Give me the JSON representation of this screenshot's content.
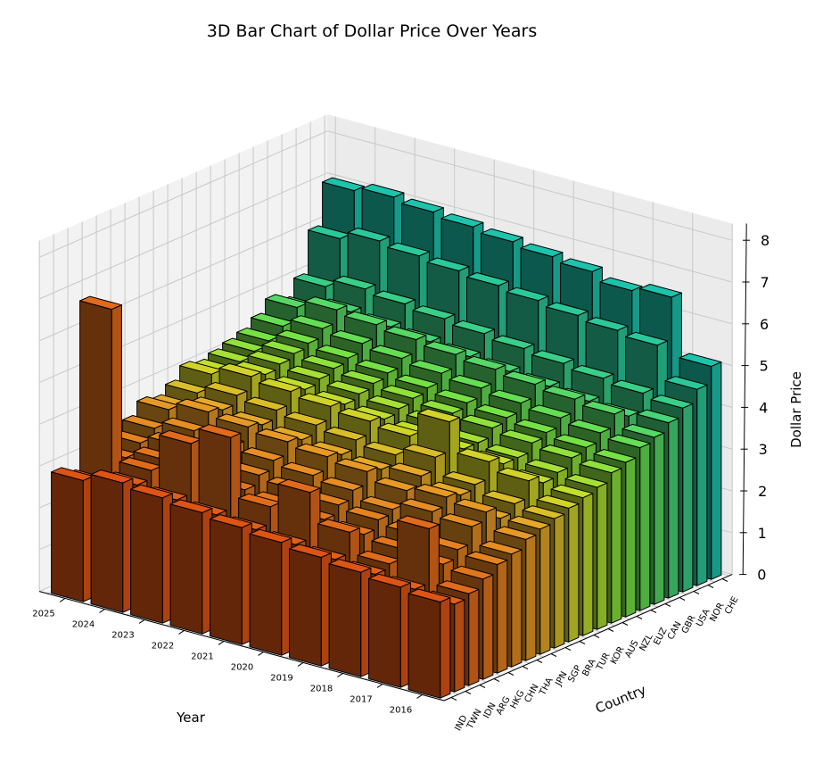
{
  "chart_data": {
    "type": "bar3d",
    "title": "3D Bar Chart of Dollar Price Over Years",
    "xlabel": "Year",
    "ylabel": "Country",
    "zlabel": "Dollar Price",
    "zlim": [
      0,
      8
    ],
    "z_ticks": [
      "0",
      "1",
      "2",
      "3",
      "4",
      "5",
      "6",
      "7",
      "8"
    ],
    "years": [
      "2016",
      "2017",
      "2018",
      "2019",
      "2020",
      "2021",
      "2022",
      "2023",
      "2024",
      "2025"
    ],
    "countries": [
      "IND",
      "TWN",
      "IDN",
      "ARG",
      "HKG",
      "CHN",
      "THA",
      "JPN",
      "SGP",
      "BRA",
      "TUR",
      "KOR",
      "AUS",
      "NZL",
      "EUZ",
      "CAN",
      "GBR",
      "USA",
      "NOR",
      "CHE"
    ],
    "grid": true,
    "colormap": "orange-to-teal by country",
    "values": [
      [
        2.3,
        2.1,
        2.2,
        2.4,
        2.6,
        2.7,
        2.9,
        3.0,
        3.1,
        3.2,
        3.3,
        3.4,
        3.6,
        3.7,
        3.9,
        4.0,
        4.2,
        4.4,
        4.7,
        5.1
      ],
      [
        2.4,
        2.2,
        3.5,
        2.5,
        2.7,
        3.1,
        3.3,
        3.0,
        3.2,
        3.6,
        3.4,
        3.5,
        3.7,
        3.8,
        4.0,
        4.3,
        4.1,
        4.5,
        5.5,
        6.5
      ],
      [
        2.5,
        2.3,
        2.4,
        2.6,
        2.8,
        3.2,
        3.4,
        3.3,
        3.4,
        3.8,
        3.6,
        3.6,
        3.8,
        3.9,
        4.1,
        4.4,
        4.2,
        4.6,
        5.6,
        6.4
      ],
      [
        2.6,
        2.4,
        2.9,
        2.7,
        2.9,
        3.0,
        3.3,
        3.5,
        3.8,
        4.5,
        3.7,
        3.7,
        3.9,
        4.0,
        4.2,
        4.5,
        4.3,
        4.7,
        5.7,
        6.6
      ],
      [
        2.7,
        2.5,
        3.6,
        2.8,
        3.0,
        3.2,
        3.5,
        3.4,
        3.6,
        3.9,
        3.8,
        3.9,
        4.0,
        4.1,
        4.3,
        4.6,
        4.4,
        4.8,
        5.8,
        6.7
      ],
      [
        2.8,
        2.6,
        3.0,
        2.9,
        3.1,
        3.3,
        3.6,
        3.5,
        3.7,
        4.0,
        3.9,
        4.0,
        4.1,
        4.2,
        4.4,
        4.7,
        4.5,
        4.9,
        5.9,
        6.8
      ],
      [
        2.9,
        2.7,
        4.4,
        3.0,
        3.2,
        3.4,
        3.7,
        3.6,
        3.8,
        4.1,
        4.0,
        4.1,
        4.2,
        4.3,
        4.5,
        4.8,
        4.6,
        5.0,
        6.0,
        6.9
      ],
      [
        3.0,
        2.8,
        4.0,
        3.1,
        3.3,
        3.5,
        3.8,
        3.7,
        3.9,
        4.2,
        4.1,
        4.2,
        4.3,
        4.4,
        4.6,
        4.9,
        4.7,
        5.1,
        6.1,
        7.0
      ],
      [
        3.1,
        2.9,
        3.1,
        3.2,
        3.4,
        3.6,
        3.9,
        3.8,
        4.0,
        4.3,
        4.2,
        4.3,
        4.4,
        4.5,
        4.7,
        5.0,
        4.8,
        5.2,
        6.2,
        7.1
      ],
      [
        2.9,
        2.7,
        6.7,
        3.0,
        3.2,
        3.4,
        3.7,
        3.6,
        3.8,
        4.1,
        4.0,
        4.1,
        4.2,
        4.3,
        4.5,
        4.8,
        4.6,
        5.0,
        6.0,
        7.0
      ]
    ]
  }
}
